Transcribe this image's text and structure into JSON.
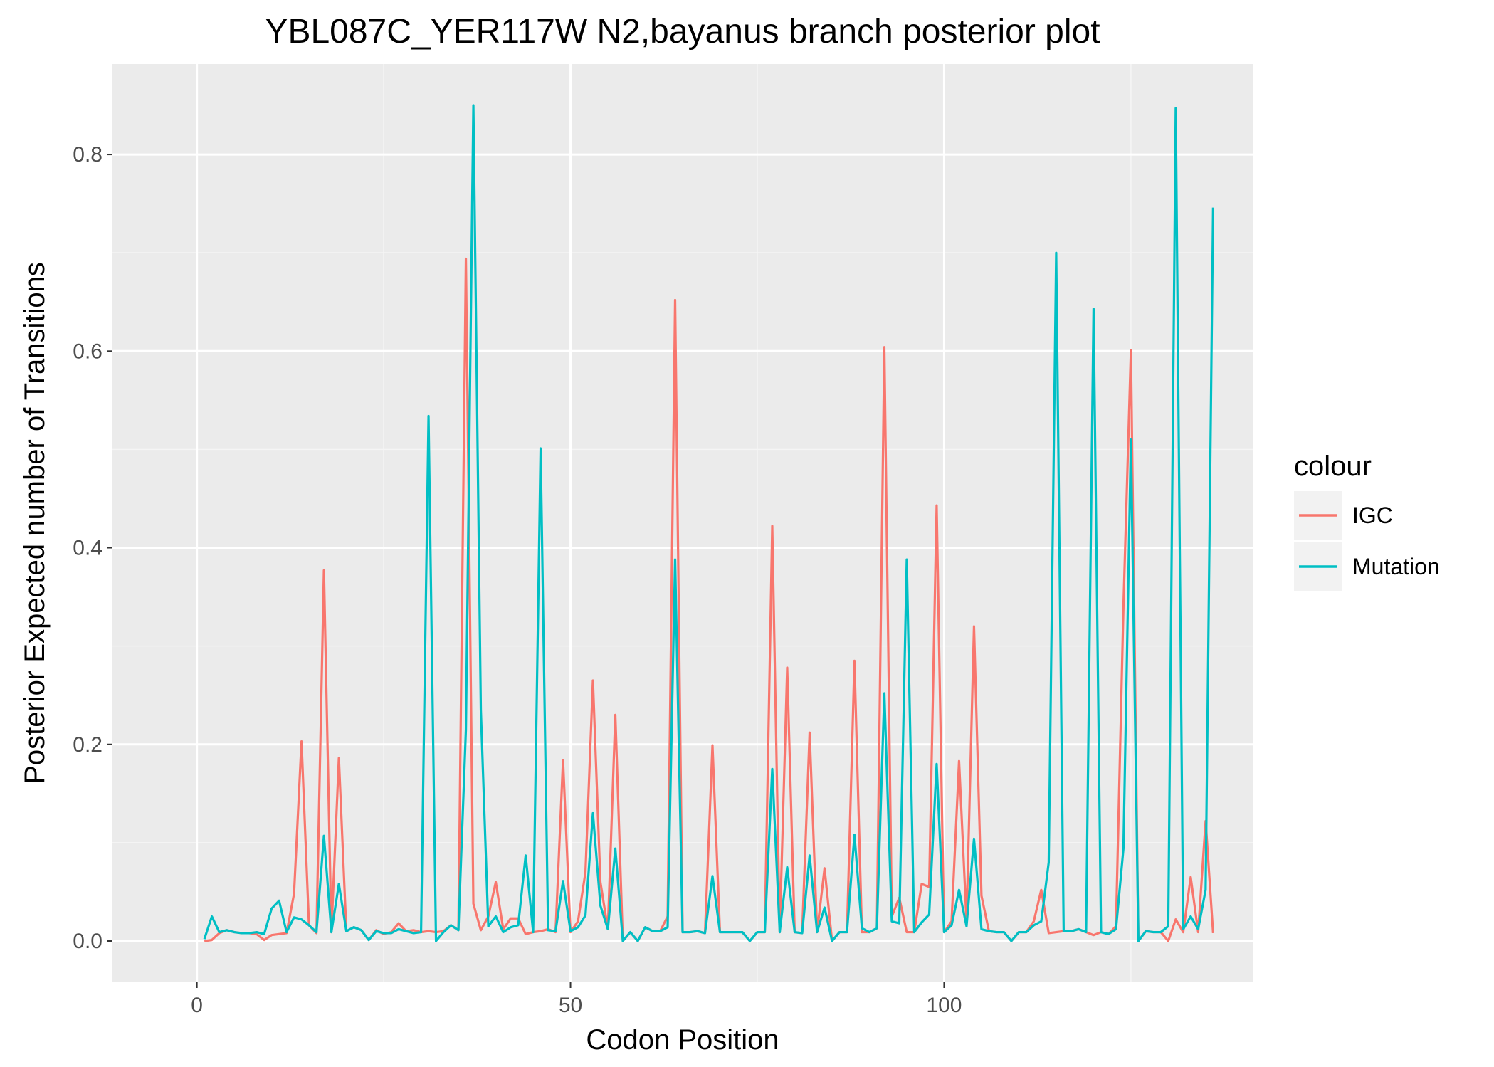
{
  "chart_data": {
    "type": "line",
    "title": "YBL087C_YER117W N2,bayanus branch posterior plot",
    "xlabel": "Codon Position",
    "ylabel": "Posterior Expected number of Transitions",
    "xlim": [
      -11.3,
      141.3
    ],
    "ylim": [
      -0.042,
      0.892
    ],
    "x_ticks": [
      0,
      50,
      100
    ],
    "x_tick_labels": [
      "0",
      "50",
      "100"
    ],
    "y_ticks": [
      0.0,
      0.2,
      0.4,
      0.6,
      0.8
    ],
    "y_tick_labels": [
      "0.0",
      "0.2",
      "0.4",
      "0.6",
      "0.8"
    ],
    "grid": true,
    "legend": {
      "title": "colour",
      "position": "right"
    },
    "series": [
      {
        "name": "IGC",
        "color": "#F8766D",
        "x": [
          1,
          2,
          3,
          4,
          5,
          6,
          7,
          8,
          9,
          10,
          11,
          12,
          13,
          14,
          15,
          16,
          17,
          18,
          19,
          20,
          21,
          22,
          23,
          24,
          25,
          26,
          27,
          28,
          29,
          30,
          31,
          32,
          33,
          34,
          35,
          36,
          37,
          38,
          39,
          40,
          41,
          42,
          43,
          44,
          45,
          46,
          47,
          48,
          49,
          50,
          51,
          52,
          53,
          54,
          55,
          56,
          57,
          58,
          59,
          60,
          61,
          62,
          63,
          64,
          65,
          66,
          67,
          68,
          69,
          70,
          71,
          72,
          73,
          74,
          75,
          76,
          77,
          78,
          79,
          80,
          81,
          82,
          83,
          84,
          85,
          86,
          87,
          88,
          89,
          90,
          91,
          92,
          93,
          94,
          95,
          96,
          97,
          98,
          99,
          100,
          101,
          102,
          103,
          104,
          105,
          106,
          107,
          108,
          109,
          110,
          111,
          112,
          113,
          114,
          115,
          116,
          117,
          118,
          119,
          120,
          121,
          122,
          123,
          124,
          125,
          126,
          127,
          128,
          129,
          130,
          131,
          132,
          133,
          134,
          135,
          136
        ],
        "values": [
          0.0,
          0.001,
          0.008,
          0.011,
          0.009,
          0.008,
          0.008,
          0.007,
          0.001,
          0.006,
          0.007,
          0.008,
          0.048,
          0.203,
          0.016,
          0.008,
          0.377,
          0.009,
          0.186,
          0.01,
          0.014,
          0.011,
          0.001,
          0.011,
          0.007,
          0.009,
          0.018,
          0.01,
          0.011,
          0.009,
          0.01,
          0.009,
          0.01,
          0.016,
          0.011,
          0.694,
          0.038,
          0.011,
          0.025,
          0.06,
          0.012,
          0.023,
          0.023,
          0.007,
          0.009,
          0.01,
          0.012,
          0.009,
          0.184,
          0.009,
          0.02,
          0.07,
          0.265,
          0.06,
          0.012,
          0.23,
          0.0,
          0.009,
          0.0,
          0.014,
          0.01,
          0.01,
          0.025,
          0.652,
          0.009,
          0.009,
          0.01,
          0.008,
          0.199,
          0.009,
          0.009,
          0.009,
          0.009,
          0.0,
          0.009,
          0.009,
          0.422,
          0.009,
          0.278,
          0.009,
          0.008,
          0.212,
          0.009,
          0.074,
          0.0,
          0.009,
          0.009,
          0.285,
          0.009,
          0.009,
          0.013,
          0.604,
          0.025,
          0.044,
          0.009,
          0.009,
          0.058,
          0.055,
          0.443,
          0.009,
          0.02,
          0.183,
          0.02,
          0.32,
          0.046,
          0.01,
          0.009,
          0.009,
          0.0,
          0.009,
          0.009,
          0.02,
          0.052,
          0.008,
          0.009,
          0.01,
          0.01,
          0.012,
          0.009,
          0.006,
          0.009,
          0.007,
          0.015,
          0.34,
          0.601,
          0.0,
          0.01,
          0.009,
          0.009,
          0.0,
          0.022,
          0.009,
          0.065,
          0.009,
          0.122,
          0.008
        ]
      },
      {
        "name": "Mutation",
        "color": "#00BFC4",
        "x": [
          1,
          2,
          3,
          4,
          5,
          6,
          7,
          8,
          9,
          10,
          11,
          12,
          13,
          14,
          15,
          16,
          17,
          18,
          19,
          20,
          21,
          22,
          23,
          24,
          25,
          26,
          27,
          28,
          29,
          30,
          31,
          32,
          33,
          34,
          35,
          36,
          37,
          38,
          39,
          40,
          41,
          42,
          43,
          44,
          45,
          46,
          47,
          48,
          49,
          50,
          51,
          52,
          53,
          54,
          55,
          56,
          57,
          58,
          59,
          60,
          61,
          62,
          63,
          64,
          65,
          66,
          67,
          68,
          69,
          70,
          71,
          72,
          73,
          74,
          75,
          76,
          77,
          78,
          79,
          80,
          81,
          82,
          83,
          84,
          85,
          86,
          87,
          88,
          89,
          90,
          91,
          92,
          93,
          94,
          95,
          96,
          97,
          98,
          99,
          100,
          101,
          102,
          103,
          104,
          105,
          106,
          107,
          108,
          109,
          110,
          111,
          112,
          113,
          114,
          115,
          116,
          117,
          118,
          119,
          120,
          121,
          122,
          123,
          124,
          125,
          126,
          127,
          128,
          129,
          130,
          131,
          132,
          133,
          134,
          135,
          136
        ],
        "values": [
          0.002,
          0.025,
          0.009,
          0.011,
          0.009,
          0.008,
          0.008,
          0.009,
          0.007,
          0.033,
          0.041,
          0.009,
          0.024,
          0.022,
          0.016,
          0.009,
          0.107,
          0.009,
          0.058,
          0.01,
          0.014,
          0.011,
          0.001,
          0.01,
          0.008,
          0.008,
          0.012,
          0.01,
          0.008,
          0.009,
          0.534,
          0.0,
          0.009,
          0.016,
          0.011,
          0.215,
          0.85,
          0.235,
          0.015,
          0.025,
          0.009,
          0.014,
          0.016,
          0.087,
          0.009,
          0.501,
          0.011,
          0.01,
          0.061,
          0.01,
          0.014,
          0.026,
          0.13,
          0.036,
          0.012,
          0.094,
          0.0,
          0.009,
          0.0,
          0.014,
          0.01,
          0.01,
          0.014,
          0.388,
          0.009,
          0.009,
          0.01,
          0.008,
          0.066,
          0.009,
          0.009,
          0.009,
          0.009,
          0.0,
          0.009,
          0.009,
          0.175,
          0.009,
          0.075,
          0.009,
          0.008,
          0.087,
          0.009,
          0.034,
          0.0,
          0.009,
          0.009,
          0.108,
          0.013,
          0.009,
          0.013,
          0.252,
          0.02,
          0.018,
          0.388,
          0.009,
          0.019,
          0.027,
          0.18,
          0.009,
          0.016,
          0.052,
          0.015,
          0.104,
          0.012,
          0.01,
          0.009,
          0.009,
          0.0,
          0.009,
          0.009,
          0.016,
          0.02,
          0.08,
          0.7,
          0.01,
          0.01,
          0.012,
          0.009,
          0.643,
          0.009,
          0.007,
          0.012,
          0.094,
          0.51,
          0.0,
          0.01,
          0.009,
          0.009,
          0.015,
          0.847,
          0.012,
          0.025,
          0.012,
          0.052,
          0.746
        ]
      }
    ]
  }
}
